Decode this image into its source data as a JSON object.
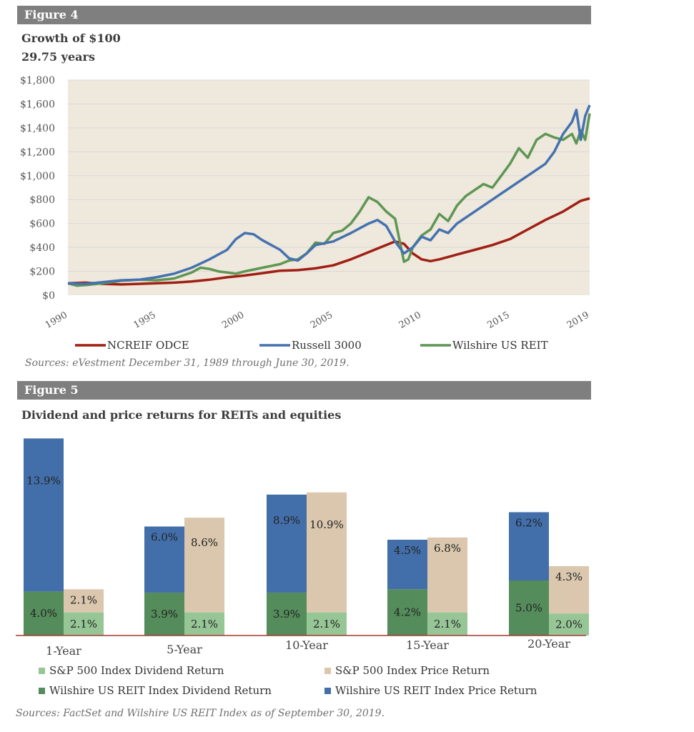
{
  "figure4": {
    "header": "Figure 4",
    "title_line1": "Growth of $100",
    "title_line2": "29.75 years",
    "source": "Sources: eVestment December 31, 1989 through June 30, 2019."
  },
  "figure5": {
    "header": "Figure 5",
    "title": "Dividend and price returns for REITs and equities",
    "source": "Sources: FactSet and Wilshire US REIT Index as of September 30, 2019."
  },
  "chart_data": [
    {
      "type": "line",
      "title": "Growth of $100",
      "subtitle": "29.75 years",
      "ylim": [
        0,
        1800
      ],
      "xlim": [
        1990,
        2019.5
      ],
      "y_ticks": [
        "$0",
        "$200",
        "$400",
        "$600",
        "$800",
        "$1,000",
        "$1,200",
        "$1,400",
        "$1,600",
        "$1,800"
      ],
      "x_ticks": [
        "1990",
        "1995",
        "2000",
        "2005",
        "2010",
        "2015",
        "2019"
      ],
      "legend_position": "bottom",
      "plot_background": "#efe8dc",
      "series": [
        {
          "name": "NCREIF ODCE",
          "color": "#a01f14",
          "points": [
            [
              1990,
              100
            ],
            [
              1991,
              105
            ],
            [
              1992,
              95
            ],
            [
              1993,
              90
            ],
            [
              1994,
              95
            ],
            [
              1995,
              100
            ],
            [
              1996,
              105
            ],
            [
              1997,
              115
            ],
            [
              1998,
              130
            ],
            [
              1999,
              150
            ],
            [
              2000,
              165
            ],
            [
              2001,
              185
            ],
            [
              2002,
              205
            ],
            [
              2003,
              210
            ],
            [
              2004,
              225
            ],
            [
              2005,
              250
            ],
            [
              2006,
              300
            ],
            [
              2007,
              360
            ],
            [
              2008,
              420
            ],
            [
              2008.5,
              450
            ],
            [
              2009,
              430
            ],
            [
              2009.5,
              350
            ],
            [
              2010,
              300
            ],
            [
              2010.5,
              285
            ],
            [
              2011,
              300
            ],
            [
              2012,
              340
            ],
            [
              2013,
              380
            ],
            [
              2014,
              420
            ],
            [
              2015,
              470
            ],
            [
              2016,
              550
            ],
            [
              2017,
              630
            ],
            [
              2018,
              700
            ],
            [
              2019,
              790
            ],
            [
              2019.5,
              810
            ]
          ]
        },
        {
          "name": "Russell 3000",
          "color": "#4472b0",
          "points": [
            [
              1990,
              100
            ],
            [
              1991,
              95
            ],
            [
              1992,
              110
            ],
            [
              1993,
              125
            ],
            [
              1994,
              130
            ],
            [
              1995,
              150
            ],
            [
              1996,
              180
            ],
            [
              1997,
              230
            ],
            [
              1998,
              300
            ],
            [
              1998.5,
              340
            ],
            [
              1999,
              380
            ],
            [
              1999.5,
              470
            ],
            [
              2000,
              520
            ],
            [
              2000.5,
              510
            ],
            [
              2001,
              460
            ],
            [
              2001.5,
              420
            ],
            [
              2002,
              380
            ],
            [
              2002.5,
              310
            ],
            [
              2003,
              290
            ],
            [
              2003.5,
              350
            ],
            [
              2004,
              420
            ],
            [
              2005,
              450
            ],
            [
              2006,
              520
            ],
            [
              2007,
              600
            ],
            [
              2007.5,
              630
            ],
            [
              2008,
              580
            ],
            [
              2008.5,
              450
            ],
            [
              2009,
              350
            ],
            [
              2009.5,
              400
            ],
            [
              2010,
              490
            ],
            [
              2010.5,
              460
            ],
            [
              2011,
              550
            ],
            [
              2011.5,
              520
            ],
            [
              2012,
              600
            ],
            [
              2013,
              700
            ],
            [
              2014,
              800
            ],
            [
              2015,
              900
            ],
            [
              2015.5,
              950
            ],
            [
              2016,
              1000
            ],
            [
              2016.5,
              1050
            ],
            [
              2017,
              1100
            ],
            [
              2017.5,
              1200
            ],
            [
              2018,
              1350
            ],
            [
              2018.5,
              1450
            ],
            [
              2018.75,
              1550
            ],
            [
              2019,
              1300
            ],
            [
              2019.25,
              1500
            ],
            [
              2019.5,
              1590
            ]
          ]
        },
        {
          "name": "Wilshire US REIT",
          "color": "#5e9654",
          "points": [
            [
              1990,
              100
            ],
            [
              1990.5,
              80
            ],
            [
              1991,
              85
            ],
            [
              1992,
              100
            ],
            [
              1993,
              120
            ],
            [
              1994,
              130
            ],
            [
              1995,
              125
            ],
            [
              1996,
              140
            ],
            [
              1997,
              190
            ],
            [
              1997.5,
              230
            ],
            [
              1998,
              220
            ],
            [
              1998.5,
              200
            ],
            [
              1999,
              190
            ],
            [
              1999.5,
              180
            ],
            [
              2000,
              200
            ],
            [
              2001,
              230
            ],
            [
              2002,
              260
            ],
            [
              2002.5,
              290
            ],
            [
              2003,
              300
            ],
            [
              2003.5,
              350
            ],
            [
              2004,
              440
            ],
            [
              2004.5,
              430
            ],
            [
              2005,
              520
            ],
            [
              2005.5,
              540
            ],
            [
              2006,
              600
            ],
            [
              2006.5,
              700
            ],
            [
              2007,
              820
            ],
            [
              2007.5,
              780
            ],
            [
              2008,
              700
            ],
            [
              2008.5,
              640
            ],
            [
              2009,
              280
            ],
            [
              2009.25,
              300
            ],
            [
              2009.5,
              400
            ],
            [
              2010,
              500
            ],
            [
              2010.5,
              550
            ],
            [
              2011,
              680
            ],
            [
              2011.5,
              620
            ],
            [
              2012,
              750
            ],
            [
              2012.5,
              830
            ],
            [
              2013,
              880
            ],
            [
              2013.5,
              930
            ],
            [
              2014,
              900
            ],
            [
              2014.5,
              1000
            ],
            [
              2015,
              1100
            ],
            [
              2015.5,
              1230
            ],
            [
              2016,
              1150
            ],
            [
              2016.5,
              1300
            ],
            [
              2017,
              1350
            ],
            [
              2017.5,
              1320
            ],
            [
              2018,
              1300
            ],
            [
              2018.5,
              1350
            ],
            [
              2018.75,
              1270
            ],
            [
              2019,
              1380
            ],
            [
              2019.25,
              1300
            ],
            [
              2019.5,
              1520
            ]
          ]
        }
      ]
    },
    {
      "type": "bar",
      "stacked": true,
      "title": "Dividend and price returns for REITs and equities",
      "categories": [
        "1-Year",
        "5-Year",
        "10-Year",
        "15-Year",
        "20-Year"
      ],
      "groups": [
        {
          "name": "Wilshire US REIT",
          "series": [
            {
              "name": "Wilshire US REIT Index Dividend Return",
              "color": "#548c5b",
              "values": [
                4.0,
                3.9,
                3.9,
                4.2,
                5.0
              ],
              "labels": [
                "4.0%",
                "3.9%",
                "3.9%",
                "4.2%",
                "5.0%"
              ]
            },
            {
              "name": "Wilshire US REIT Index Price Return",
              "color": "#426ea9",
              "values": [
                13.9,
                6.0,
                8.9,
                4.5,
                6.2
              ],
              "labels": [
                "13.9%",
                "6.0%",
                "8.9%",
                "4.5%",
                "6.2%"
              ]
            }
          ]
        },
        {
          "name": "S&P 500",
          "series": [
            {
              "name": "S&P 500 Index Dividend Return",
              "color": "#97c696",
              "values": [
                2.1,
                2.1,
                2.1,
                2.1,
                2.0
              ],
              "labels": [
                "2.1%",
                "2.1%",
                "2.1%",
                "2.1%",
                "2.0%"
              ]
            },
            {
              "name": "S&P 500 Index Price Return",
              "color": "#dac7ae",
              "values": [
                2.1,
                8.6,
                10.9,
                6.8,
                4.3
              ],
              "labels": [
                "2.1%",
                "8.6%",
                "10.9%",
                "6.8%",
                "4.3%"
              ]
            }
          ]
        }
      ],
      "legend": [
        "S&P 500 Index Dividend Return",
        "S&P 500 Index Price Return",
        "Wilshire US REIT Index Dividend Return",
        "Wilshire US REIT Index Price Return"
      ],
      "legend_colors": [
        "#97c696",
        "#dac7ae",
        "#548c5b",
        "#426ea9"
      ],
      "legend_position": "bottom",
      "baseline_color": "#a23a2e"
    }
  ]
}
